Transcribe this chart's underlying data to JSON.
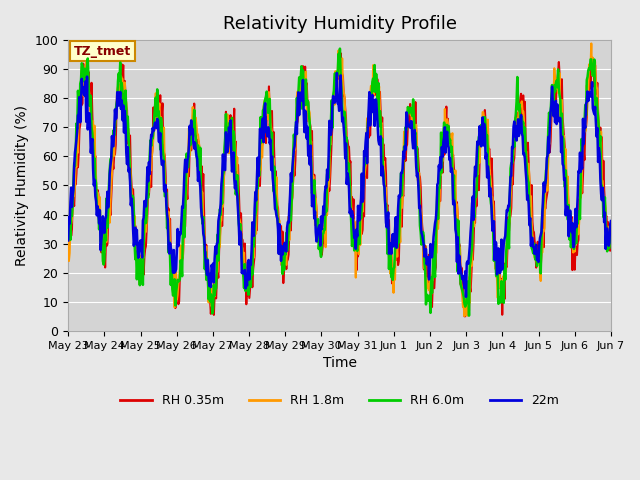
{
  "title": "Relativity Humidity Profile",
  "xlabel": "Time",
  "ylabel": "Relativity Humidity (%)",
  "ylim": [
    0,
    100
  ],
  "background_color": "#e8e8e8",
  "plot_bg_color": "#d4d4d4",
  "grid_color": "#ffffff",
  "annotation_text": "TZ_tmet",
  "annotation_bg": "#ffffcc",
  "annotation_border": "#cc8800",
  "annotation_text_color": "#880000",
  "lines": [
    {
      "label": "RH 0.35m",
      "color": "#dd0000"
    },
    {
      "label": "RH 1.8m",
      "color": "#ff9900"
    },
    {
      "label": "RH 6.0m",
      "color": "#00cc00"
    },
    {
      "label": "22m",
      "color": "#0000dd"
    }
  ],
  "x_tick_labels": [
    "May 23",
    "May 24",
    "May 25",
    "May 26",
    "May 27",
    "May 28",
    "May 29",
    "May 30",
    "May 31",
    "Jun 1",
    "Jun 2",
    "Jun 3",
    "Jun 4",
    "Jun 5",
    "Jun 6",
    "Jun 7"
  ],
  "legend_line_colors": [
    "#dd0000",
    "#ff9900",
    "#00cc00",
    "#0000dd"
  ],
  "legend_labels": [
    "RH 0.35m",
    "RH 1.8m",
    "RH 6.0m",
    "22m"
  ]
}
